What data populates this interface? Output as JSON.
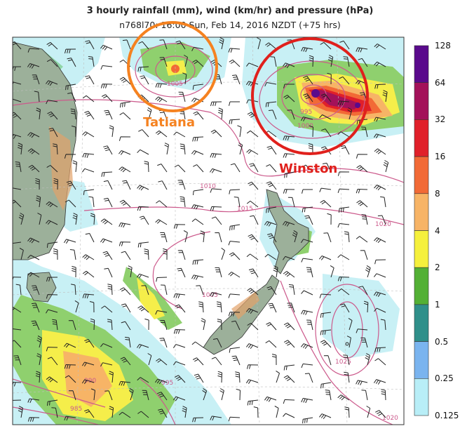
{
  "header": {
    "title": "3 hourly rainfall (mm), wind (km/hr) and pressure (hPa)",
    "subtitle": "n768l70: 16:00 Sun, Feb 14, 2016 NZDT (+75 hrs)"
  },
  "annotations": {
    "tatiana": {
      "label": "Tatiana",
      "color": "#f58220"
    },
    "winston": {
      "label": "Winston",
      "color": "#e0201c"
    }
  },
  "isobar_labels": [
    "1005",
    "995",
    "1000",
    "1010",
    "1015",
    "1020",
    "1025",
    "1005",
    "990",
    "995",
    "985",
    "1020"
  ],
  "colorbar": {
    "labels": [
      "128",
      "64",
      "32",
      "16",
      "8",
      "4",
      "2",
      "1",
      "0.5",
      "0.25",
      "0.125"
    ],
    "colors": [
      "#5a0a8c",
      "#a3125a",
      "#e0202a",
      "#f26a36",
      "#f7b466",
      "#f5f03c",
      "#53b035",
      "#2f8f8a",
      "#7ab4ef",
      "#b8eef7"
    ]
  },
  "colors": {
    "ocean": "#ffffff",
    "land": "#9cb09a",
    "isobar": "#cc5a8c",
    "barb": "#222222"
  }
}
